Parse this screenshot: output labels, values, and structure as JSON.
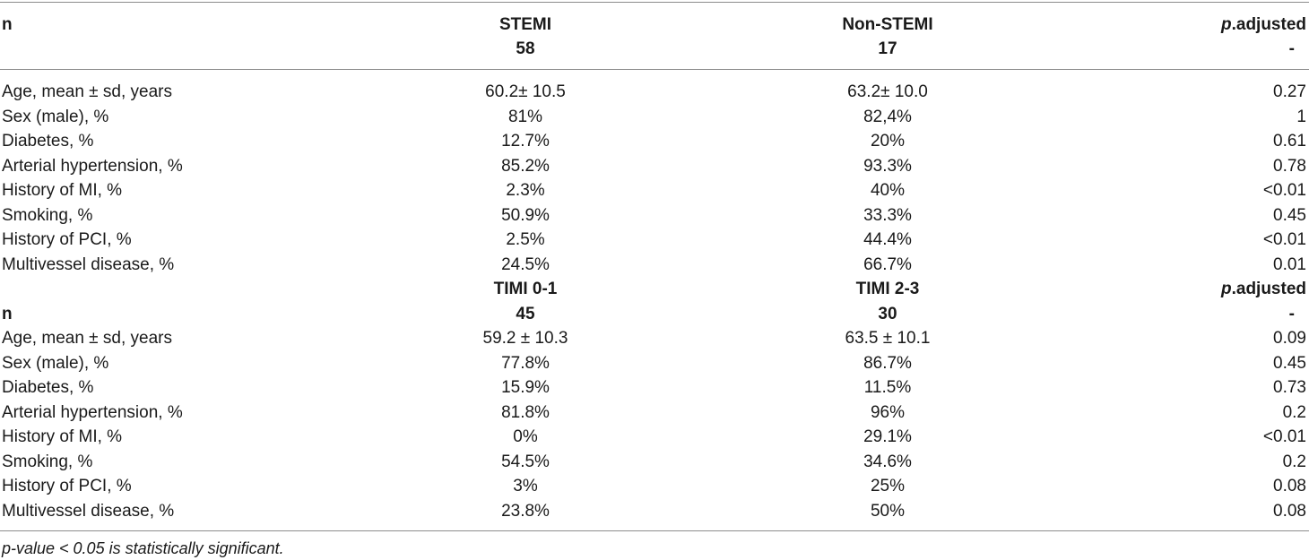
{
  "header": {
    "n_label": "n",
    "col2_title": "STEMI",
    "col2_n": "58",
    "col3_title": "Non-STEMI",
    "col3_n": "17",
    "p_italic": "p",
    "p_rest": ".adjusted",
    "p_dash": "-"
  },
  "group1": [
    {
      "label": "Age, mean ± sd, years",
      "a": "60.2± 10.5",
      "b": "63.2± 10.0",
      "p": "0.27"
    },
    {
      "label": "Sex (male), %",
      "a": "81%",
      "b": "82,4%",
      "p": "1"
    },
    {
      "label": "Diabetes, %",
      "a": "12.7%",
      "b": "20%",
      "p": "0.61"
    },
    {
      "label": "Arterial hypertension, %",
      "a": "85.2%",
      "b": "93.3%",
      "p": "0.78"
    },
    {
      "label": "History of MI, %",
      "a": "2.3%",
      "b": "40%",
      "p": "<0.01"
    },
    {
      "label": "Smoking, %",
      "a": "50.9%",
      "b": "33.3%",
      "p": "0.45"
    },
    {
      "label": "History of PCI, %",
      "a": "2.5%",
      "b": "44.4%",
      "p": "<0.01"
    },
    {
      "label": "Multivessel disease, %",
      "a": "24.5%",
      "b": "66.7%",
      "p": "0.01"
    }
  ],
  "subheader": {
    "col2_title": "TIMI 0-1",
    "col3_title": "TIMI 2-3",
    "p_italic": "p",
    "p_rest": ".adjusted",
    "n_label": "n",
    "col2_n": "45",
    "col3_n": "30",
    "p_dash": "-"
  },
  "group2": [
    {
      "label": "Age, mean ± sd, years",
      "a": "59.2 ± 10.3",
      "b": "63.5 ± 10.1",
      "p": "0.09"
    },
    {
      "label": "Sex (male), %",
      "a": "77.8%",
      "b": "86.7%",
      "p": "0.45"
    },
    {
      "label": "Diabetes, %",
      "a": "15.9%",
      "b": "11.5%",
      "p": "0.73"
    },
    {
      "label": "Arterial hypertension, %",
      "a": "81.8%",
      "b": "96%",
      "p": "0.2"
    },
    {
      "label": "History of MI, %",
      "a": "0%",
      "b": "29.1%",
      "p": "<0.01"
    },
    {
      "label": "Smoking, %",
      "a": "54.5%",
      "b": "34.6%",
      "p": "0.2"
    },
    {
      "label": "History of PCI, %",
      "a": "3%",
      "b": "25%",
      "p": "0.08"
    },
    {
      "label": "Multivessel disease, %",
      "a": "23.8%",
      "b": "50%",
      "p": "0.08"
    }
  ],
  "footnote": "p-value < 0.05 is statistically significant."
}
